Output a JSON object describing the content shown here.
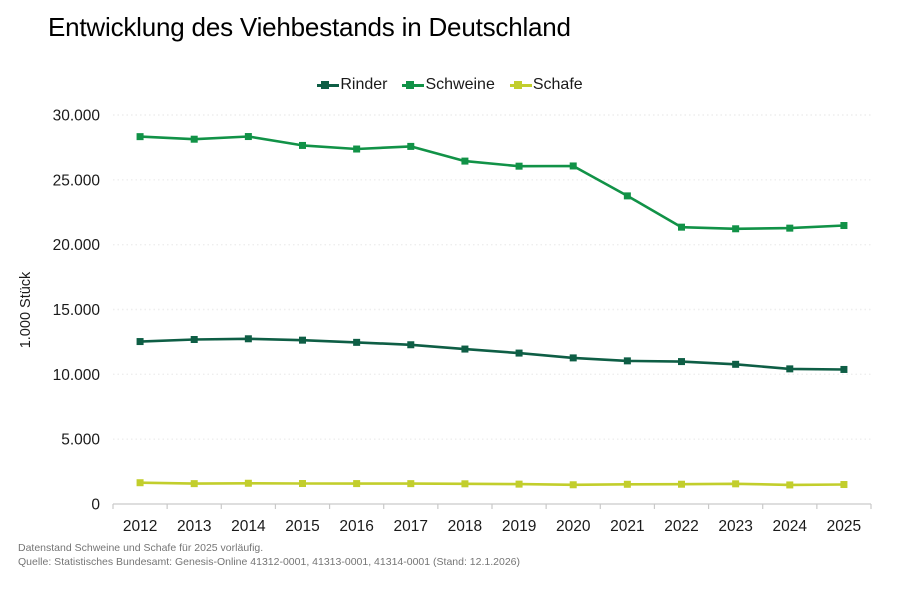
{
  "page": {
    "title": "Entwicklung des Viehbestands in Deutschland"
  },
  "footnotes": [
    "Datenstand Schweine und Schafe für 2025 vorläufig.",
    "Quelle: Statistisches Bundesamt: Genesis-Online 41312-0001, 41313-0001, 41314-0001 (Stand: 12.1.2026)"
  ],
  "colors": {
    "grid": "#eeeeee",
    "axis": "#c9c9c9",
    "tick_text": "#1a1a1a",
    "footnote_text": "#757575"
  },
  "chart_data": {
    "type": "line",
    "title": "Entwicklung des Viehbestands in Deutschland",
    "xlabel": "",
    "ylabel": "1.000 Stück",
    "categories": [
      "2012",
      "2013",
      "2014",
      "2015",
      "2016",
      "2017",
      "2018",
      "2019",
      "2020",
      "2021",
      "2022",
      "2023",
      "2024",
      "2025"
    ],
    "series": [
      {
        "name": "Rinder",
        "color": "#0e5e45",
        "values": [
          12528,
          12686,
          12742,
          12635,
          12466,
          12281,
          11949,
          11639,
          11268,
          11039,
          10984,
          10772,
          10422,
          10376
        ]
      },
      {
        "name": "Schweine",
        "color": "#119247",
        "values": [
          28331,
          28133,
          28339,
          27652,
          27376,
          27578,
          26445,
          26053,
          26070,
          23762,
          21350,
          21225,
          21274,
          21477
        ]
      },
      {
        "name": "Schafe",
        "color": "#c2ce2c",
        "values": [
          1641,
          1571,
          1600,
          1580,
          1574,
          1570,
          1558,
          1532,
          1483,
          1520,
          1525,
          1556,
          1470,
          1503
        ]
      }
    ],
    "ylim": [
      0,
      30000
    ],
    "ytick_step": 5000,
    "ytick_labels": [
      "0",
      "5.000",
      "10.000",
      "15.000",
      "20.000",
      "25.000",
      "30.000"
    ],
    "grid": true,
    "grid_style": "dotted",
    "legend_position": "top"
  }
}
